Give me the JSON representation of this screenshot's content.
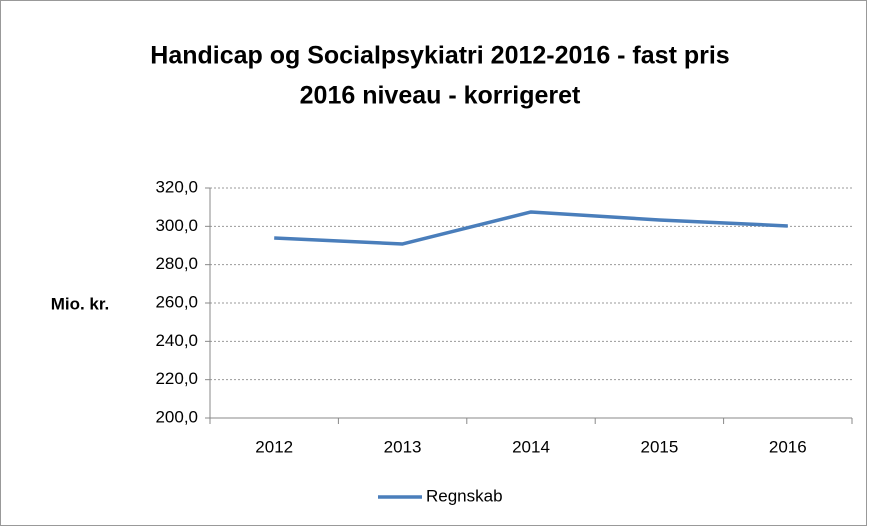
{
  "chart_data": {
    "type": "line",
    "title": [
      "Handicap og Socialpsykiatri 2012-2016 - fast pris",
      "2016 niveau - korrigeret"
    ],
    "ylabel": "Mio. kr.",
    "categories": [
      "2012",
      "2013",
      "2014",
      "2015",
      "2016"
    ],
    "series": [
      {
        "name": "Regnskab",
        "color": "#4a7ebb",
        "values": [
          293.9,
          290.8,
          307.5,
          303.3,
          300.2
        ]
      }
    ],
    "ylim": [
      200,
      320
    ],
    "yticks": [
      {
        "value": 200,
        "label": "200,0"
      },
      {
        "value": 220,
        "label": "220,0"
      },
      {
        "value": 240,
        "label": "240,0"
      },
      {
        "value": 260,
        "label": "260,0"
      },
      {
        "value": 280,
        "label": "280,0"
      },
      {
        "value": 300,
        "label": "300,0"
      },
      {
        "value": 320,
        "label": "320,0"
      }
    ],
    "grid": true,
    "legend": "bottom"
  }
}
